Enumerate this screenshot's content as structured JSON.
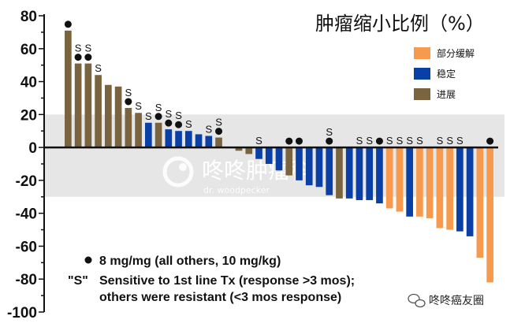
{
  "chart_data": {
    "type": "bar",
    "title": "肿瘤缩小比例（%）",
    "ylim": [
      -100,
      80
    ],
    "yticks": [
      80,
      60,
      40,
      20,
      0,
      -20,
      -40,
      -60,
      -80,
      -100
    ],
    "band": [
      -30,
      20
    ],
    "legend": {
      "placement": "top-right",
      "items": [
        {
          "key": "pr",
          "label": "部分缓解",
          "color": "#f79a4e"
        },
        {
          "key": "sd",
          "label": "稳定",
          "color": "#0a3fa6"
        },
        {
          "key": "pd",
          "label": "进展",
          "color": "#7a6440"
        }
      ]
    },
    "bars": [
      {
        "value": 71,
        "cat": "pd",
        "dot": true,
        "s": false
      },
      {
        "value": 51,
        "cat": "pd",
        "dot": true,
        "s": true
      },
      {
        "value": 51,
        "cat": "pd",
        "dot": true,
        "s": true
      },
      {
        "value": 44,
        "cat": "pd",
        "dot": false,
        "s": true
      },
      {
        "value": 38,
        "cat": "pd",
        "dot": false,
        "s": false
      },
      {
        "value": 37,
        "cat": "pd",
        "dot": false,
        "s": false
      },
      {
        "value": 24,
        "cat": "pd",
        "dot": true,
        "s": true
      },
      {
        "value": 21,
        "cat": "pd",
        "dot": false,
        "s": true
      },
      {
        "value": 15,
        "cat": "sd",
        "dot": false,
        "s": true
      },
      {
        "value": 15,
        "cat": "pd",
        "dot": true,
        "s": true
      },
      {
        "value": 11,
        "cat": "sd",
        "dot": true,
        "s": true
      },
      {
        "value": 10,
        "cat": "sd",
        "dot": true,
        "s": true
      },
      {
        "value": 10,
        "cat": "sd",
        "dot": false,
        "s": true
      },
      {
        "value": 8,
        "cat": "sd",
        "dot": false,
        "s": false
      },
      {
        "value": 7,
        "cat": "sd",
        "dot": false,
        "s": true
      },
      {
        "value": 6,
        "cat": "pd",
        "dot": true,
        "s": true
      },
      {
        "value": 0,
        "cat": "sd",
        "dot": false,
        "s": false
      },
      {
        "value": -2,
        "cat": "pd",
        "dot": false,
        "s": false
      },
      {
        "value": -4,
        "cat": "pd",
        "dot": false,
        "s": false
      },
      {
        "value": -7,
        "cat": "sd",
        "dot": false,
        "s": true
      },
      {
        "value": -10,
        "cat": "sd",
        "dot": false,
        "s": false
      },
      {
        "value": -14,
        "cat": "sd",
        "dot": false,
        "s": false
      },
      {
        "value": -17,
        "cat": "pd",
        "dot": true,
        "s": false
      },
      {
        "value": -20,
        "cat": "sd",
        "dot": true,
        "s": false
      },
      {
        "value": -23,
        "cat": "sd",
        "dot": false,
        "s": false
      },
      {
        "value": -24,
        "cat": "sd",
        "dot": false,
        "s": false
      },
      {
        "value": -29,
        "cat": "sd",
        "dot": true,
        "s": true
      },
      {
        "value": -31,
        "cat": "pd",
        "dot": false,
        "s": false
      },
      {
        "value": -31,
        "cat": "sd",
        "dot": false,
        "s": false
      },
      {
        "value": -32,
        "cat": "sd",
        "dot": false,
        "s": true
      },
      {
        "value": -32,
        "cat": "sd",
        "dot": false,
        "s": true
      },
      {
        "value": -34,
        "cat": "sd",
        "dot": true,
        "s": false
      },
      {
        "value": -37,
        "cat": "pr",
        "dot": false,
        "s": true
      },
      {
        "value": -39,
        "cat": "pr",
        "dot": false,
        "s": true
      },
      {
        "value": -42,
        "cat": "sd",
        "dot": false,
        "s": true
      },
      {
        "value": -42,
        "cat": "pr",
        "dot": false,
        "s": true
      },
      {
        "value": -43,
        "cat": "pr",
        "dot": false,
        "s": false
      },
      {
        "value": -49,
        "cat": "pr",
        "dot": false,
        "s": true
      },
      {
        "value": -50,
        "cat": "pr",
        "dot": false,
        "s": true
      },
      {
        "value": -51,
        "cat": "sd",
        "dot": false,
        "s": true
      },
      {
        "value": -54,
        "cat": "sd",
        "dot": false,
        "s": false
      },
      {
        "value": -67,
        "cat": "pr",
        "dot": false,
        "s": false
      },
      {
        "value": -82,
        "cat": "pr",
        "dot": true,
        "s": false
      }
    ],
    "notes": {
      "dot": "8 mg/mg (all others, 10 mg/kg)",
      "s_key": "\"S\"",
      "s_line1": "Sensitive to 1st line Tx (response >3 mos);",
      "s_line2": "others were resistant (<3 mos response)",
      "s_marker": "S"
    }
  },
  "watermark": {
    "main": "咚咚肿瘤科",
    "sub": "dr. woodpecker"
  },
  "source": {
    "label": "咚咚癌友圈"
  },
  "icons": [
    "wechat-icon",
    "watermark-logo-icon"
  ]
}
